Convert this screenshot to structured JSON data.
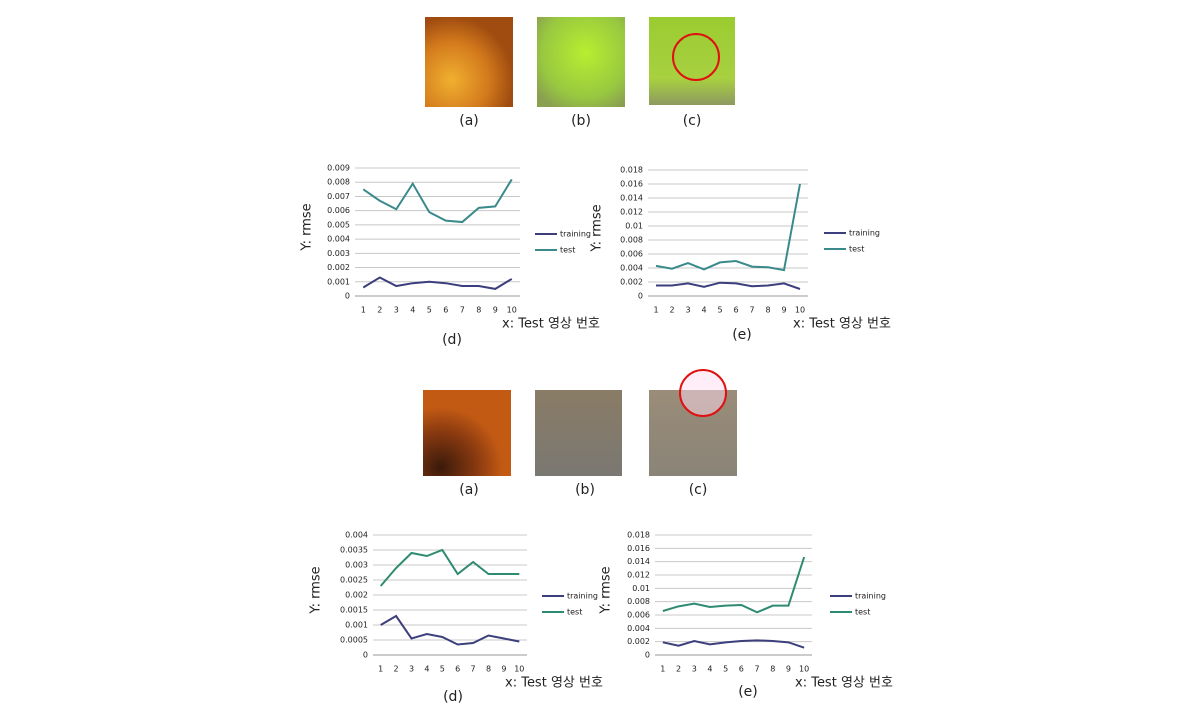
{
  "panels": [
    {
      "labels": [
        "(a)",
        "(b)",
        "(c)"
      ]
    },
    {
      "labels": [
        "(a)",
        "(b)",
        "(c)"
      ]
    }
  ],
  "chart_data": [
    {
      "type": "line",
      "ylabel": "Y: rmse",
      "xlabel": "x: Test 영상 번호",
      "panel_label": "(d)",
      "categories": [
        "1",
        "2",
        "3",
        "4",
        "5",
        "6",
        "7",
        "8",
        "9",
        "10"
      ],
      "series": [
        {
          "name": "training",
          "color": "#3c3f7c",
          "values": [
            0.0006,
            0.0013,
            0.0007,
            0.0009,
            0.001,
            0.0009,
            0.0007,
            0.0007,
            0.0005,
            0.0012
          ]
        },
        {
          "name": "test",
          "color": "#3a8a8c",
          "values": [
            0.0075,
            0.0067,
            0.0061,
            0.0079,
            0.0059,
            0.0053,
            0.0052,
            0.0062,
            0.0063,
            0.0082
          ]
        }
      ],
      "ylim": [
        0,
        0.009
      ],
      "yticks": [
        0,
        0.001,
        0.002,
        0.003,
        0.004,
        0.005,
        0.006,
        0.007,
        0.008,
        0.009
      ],
      "grid": true
    },
    {
      "type": "line",
      "ylabel": "Y: rmse",
      "xlabel": "x: Test 영상 번호",
      "panel_label": "(e)",
      "categories": [
        "1",
        "2",
        "3",
        "4",
        "5",
        "6",
        "7",
        "8",
        "9",
        "10"
      ],
      "series": [
        {
          "name": "training",
          "color": "#3c3f7c",
          "values": [
            0.0015,
            0.0015,
            0.0018,
            0.0013,
            0.0019,
            0.0018,
            0.0014,
            0.0015,
            0.0018,
            0.001
          ]
        },
        {
          "name": "test",
          "color": "#3a8a8c",
          "values": [
            0.0043,
            0.0039,
            0.0047,
            0.0038,
            0.0048,
            0.005,
            0.0042,
            0.0041,
            0.0037,
            0.016
          ]
        }
      ],
      "ylim": [
        0,
        0.018
      ],
      "yticks": [
        0,
        0.002,
        0.004,
        0.006,
        0.008,
        0.01,
        0.012,
        0.014,
        0.016,
        0.018
      ],
      "grid": true
    },
    {
      "type": "line",
      "ylabel": "Y: rmse",
      "xlabel": "x: Test 영상 번호",
      "panel_label": "(d)",
      "categories": [
        "1",
        "2",
        "3",
        "4",
        "5",
        "6",
        "7",
        "8",
        "9",
        "10"
      ],
      "series": [
        {
          "name": "training",
          "color": "#3c3f7c",
          "values": [
            0.001,
            0.0013,
            0.00055,
            0.0007,
            0.0006,
            0.00035,
            0.0004,
            0.00065,
            0.00055,
            0.00045
          ]
        },
        {
          "name": "test",
          "color": "#2e8a70",
          "values": [
            0.0023,
            0.0029,
            0.0034,
            0.0033,
            0.0035,
            0.0027,
            0.0031,
            0.0027,
            0.0027,
            0.0027
          ]
        }
      ],
      "ylim": [
        0,
        0.004
      ],
      "yticks": [
        0,
        0.0005,
        0.001,
        0.0015,
        0.002,
        0.0025,
        0.003,
        0.0035,
        0.004
      ],
      "grid": true
    },
    {
      "type": "line",
      "ylabel": "Y: rmse",
      "xlabel": "x: Test 영상 번호",
      "panel_label": "(e)",
      "categories": [
        "1",
        "2",
        "3",
        "4",
        "5",
        "6",
        "7",
        "8",
        "9",
        "10"
      ],
      "series": [
        {
          "name": "training",
          "color": "#3c3f7c",
          "values": [
            0.0019,
            0.0014,
            0.0021,
            0.0016,
            0.0019,
            0.0021,
            0.0022,
            0.0021,
            0.0019,
            0.0011
          ]
        },
        {
          "name": "test",
          "color": "#2e8a70",
          "values": [
            0.0066,
            0.0073,
            0.0077,
            0.0072,
            0.0074,
            0.0075,
            0.0064,
            0.0074,
            0.0074,
            0.0147
          ]
        }
      ],
      "ylim": [
        0,
        0.018
      ],
      "yticks": [
        0,
        0.002,
        0.004,
        0.006,
        0.008,
        0.01,
        0.012,
        0.014,
        0.016,
        0.018
      ],
      "grid": true
    }
  ]
}
